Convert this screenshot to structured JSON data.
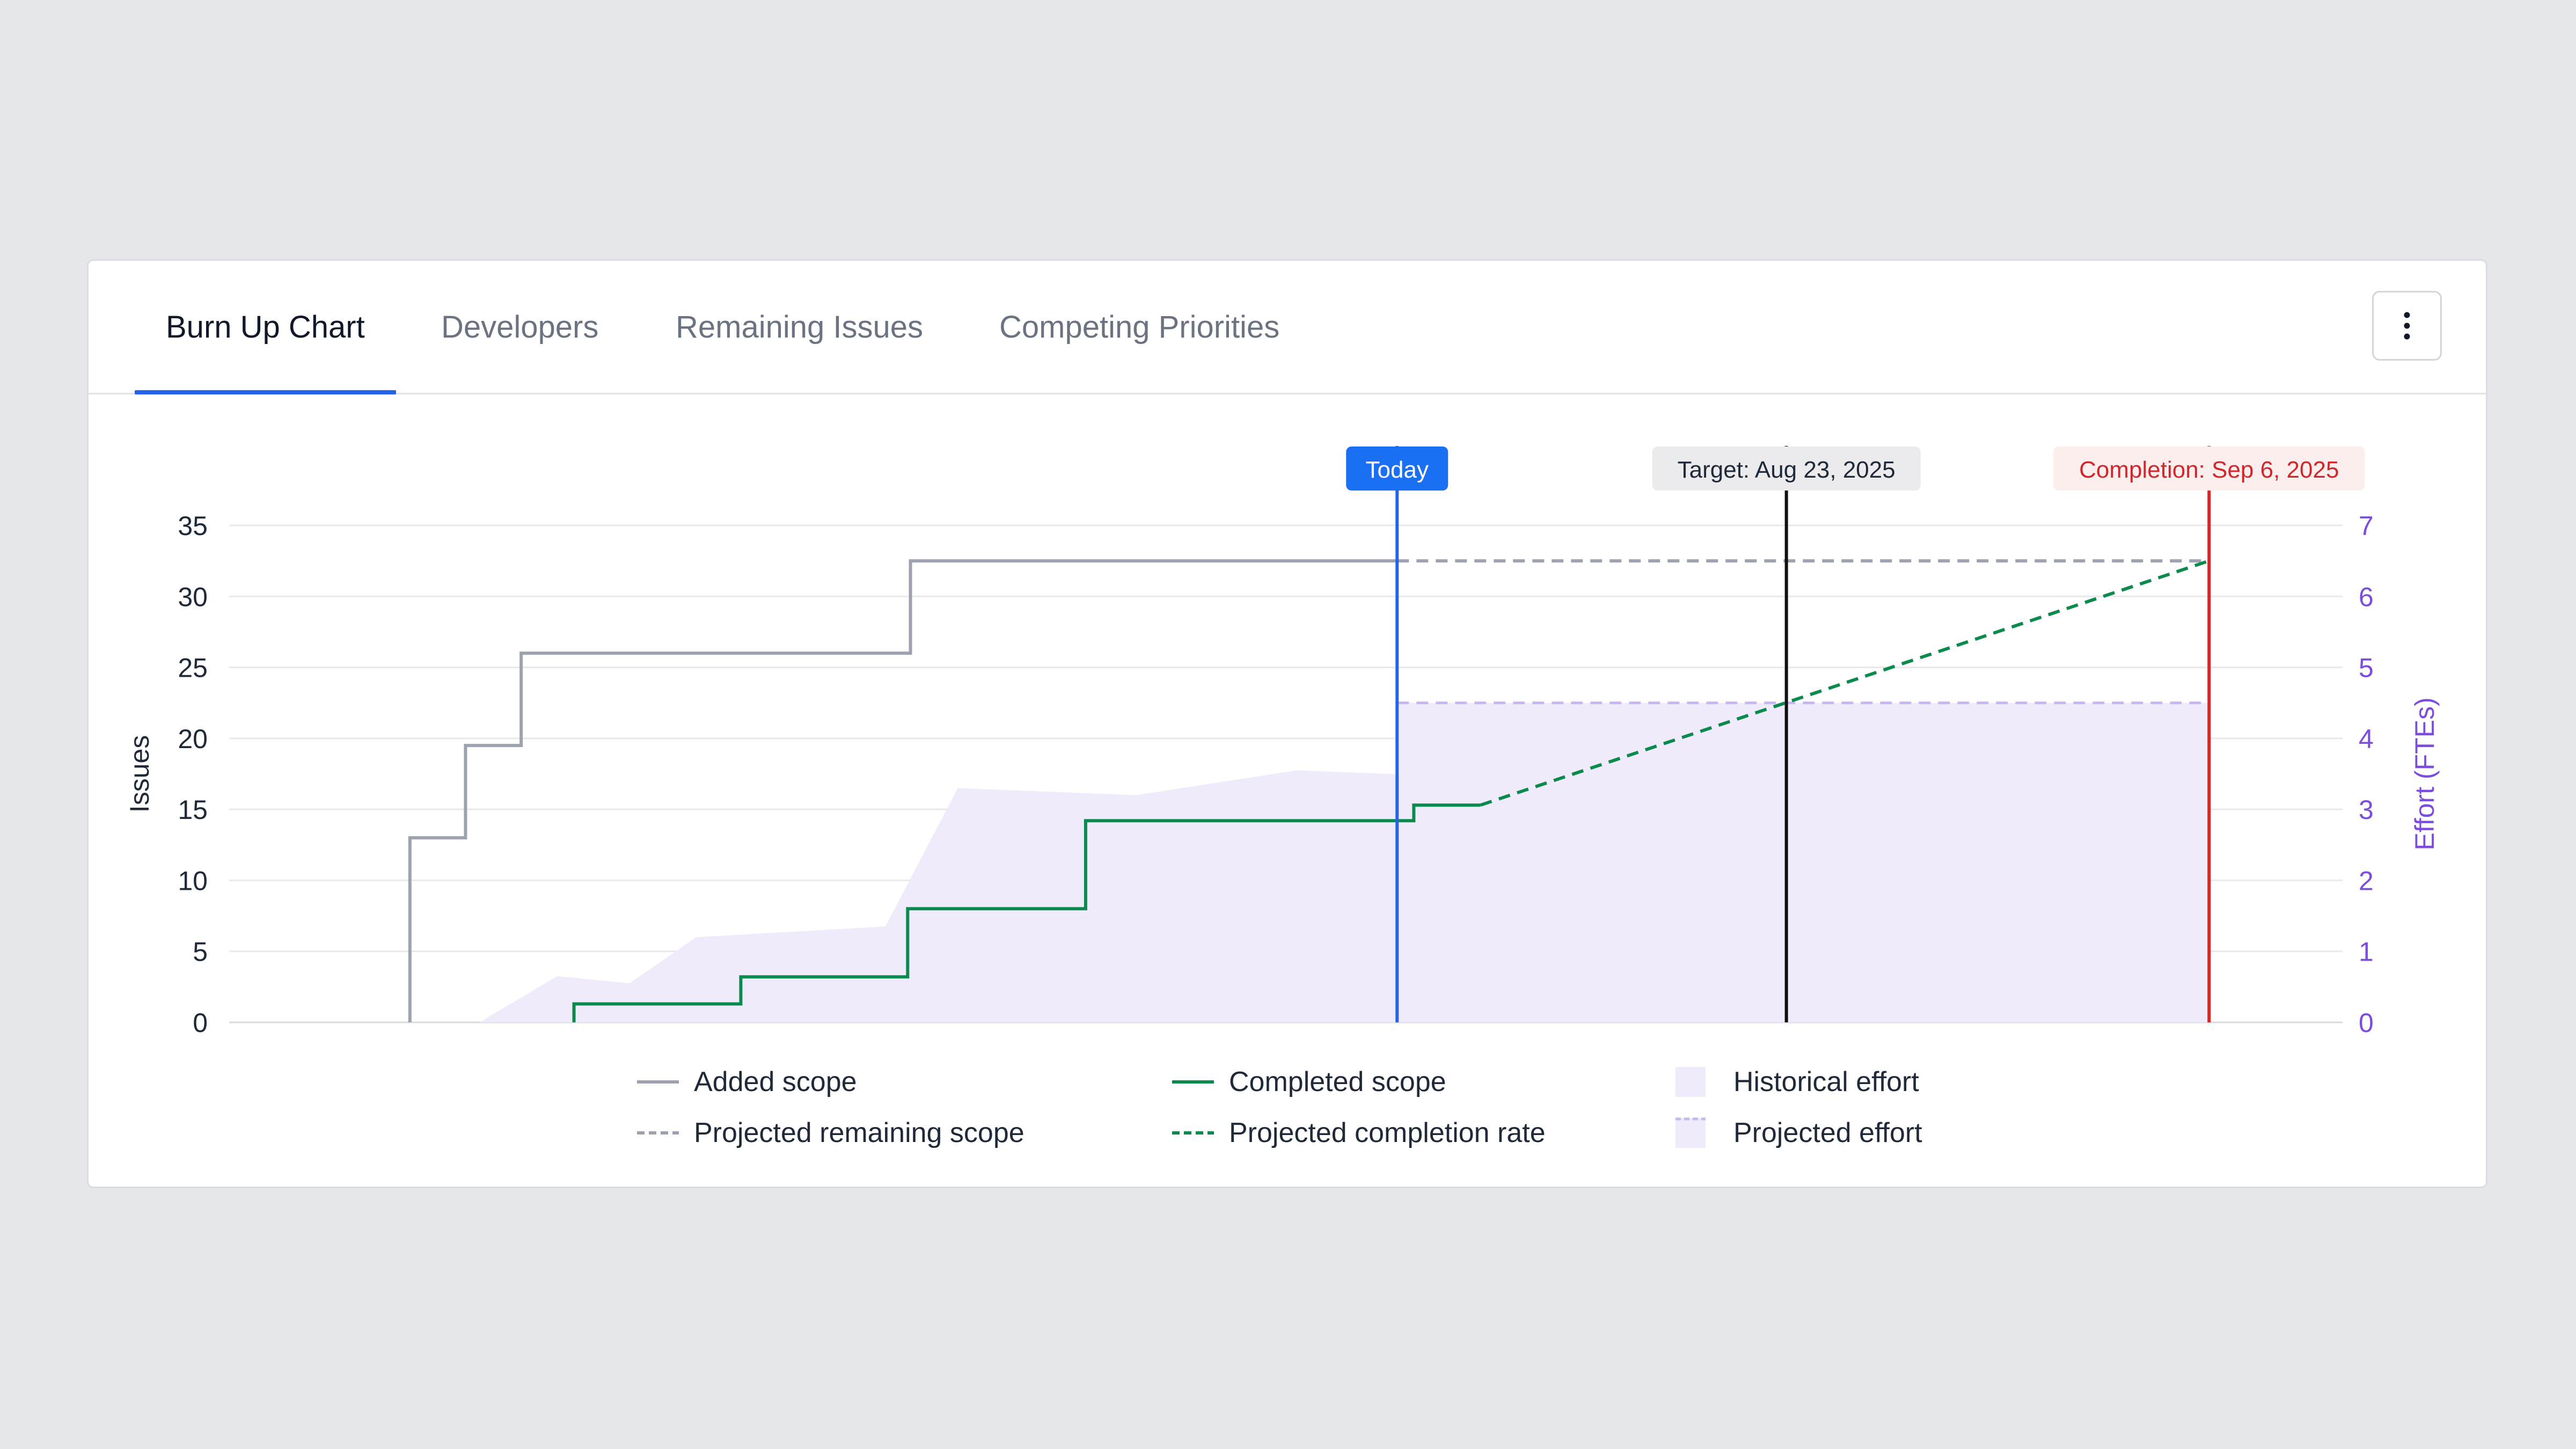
{
  "tabs": [
    {
      "label": "Burn Up Chart",
      "active": true
    },
    {
      "label": "Developers",
      "active": false
    },
    {
      "label": "Remaining Issues",
      "active": false
    },
    {
      "label": "Competing Priorities",
      "active": false
    }
  ],
  "menu_icon": "kebab-vertical-icon",
  "colors": {
    "accent": "#2563eb",
    "added_scope": "#9ca3af",
    "completed_scope": "#0b8a4e",
    "effort_fill": "#efebfa",
    "effort_line": "#c9b8ef",
    "right_axis": "#7c4ddc",
    "target": "#111111",
    "completion": "#dc2626"
  },
  "markers": {
    "today": {
      "label": "Today",
      "x": 21
    },
    "target": {
      "label": "Target: Aug 23, 2025",
      "x": 28
    },
    "completion": {
      "label": "Completion: Sep 6, 2025",
      "x": 35.6
    }
  },
  "chart_data": {
    "type": "line",
    "ylabel": "Issues",
    "y2label": "Effort (FTEs)",
    "ylim": [
      0,
      35
    ],
    "yticks": [
      0,
      5,
      10,
      15,
      20,
      25,
      30,
      35
    ],
    "y2lim": [
      0,
      7
    ],
    "y2ticks": [
      0,
      1,
      2,
      3,
      4,
      5,
      6,
      7
    ],
    "grid": true,
    "legend_position": "bottom",
    "series": [
      {
        "name": "Added scope",
        "style": "step",
        "points": [
          [
            3.25,
            0
          ],
          [
            3.25,
            13
          ],
          [
            4.25,
            13
          ],
          [
            4.25,
            19.5
          ],
          [
            5.25,
            19.5
          ],
          [
            5.25,
            26
          ],
          [
            12.25,
            26
          ],
          [
            12.25,
            32.5
          ],
          [
            21,
            32.5
          ]
        ]
      },
      {
        "name": "Completed scope",
        "style": "step",
        "points": [
          [
            6.2,
            0
          ],
          [
            6.2,
            1.3
          ],
          [
            9.2,
            1.3
          ],
          [
            9.2,
            3.2
          ],
          [
            12.2,
            3.2
          ],
          [
            12.2,
            8
          ],
          [
            15.4,
            8
          ],
          [
            15.4,
            14.2
          ],
          [
            21.3,
            14.2
          ],
          [
            21.3,
            15.3
          ],
          [
            22.5,
            15.3
          ]
        ]
      },
      {
        "name": "Projected remaining scope",
        "style": "dashed",
        "points": [
          [
            21,
            32.5
          ],
          [
            35.6,
            32.5
          ]
        ]
      },
      {
        "name": "Projected completion rate",
        "style": "dashed",
        "points": [
          [
            22.5,
            15.3
          ],
          [
            35.6,
            32.5
          ]
        ]
      },
      {
        "name": "Historical effort",
        "style": "area",
        "axis": "right",
        "points": [
          [
            4.5,
            0
          ],
          [
            5.9,
            0.65
          ],
          [
            7.2,
            0.55
          ],
          [
            8.4,
            1.2
          ],
          [
            11.8,
            1.35
          ],
          [
            13.1,
            3.3
          ],
          [
            16.3,
            3.2
          ],
          [
            19.2,
            3.55
          ],
          [
            22.5,
            3.45
          ]
        ]
      },
      {
        "name": "Projected effort",
        "style": "area-dashed",
        "axis": "right",
        "points": [
          [
            21,
            4.5
          ],
          [
            35.6,
            4.5
          ]
        ]
      }
    ]
  },
  "legend": [
    {
      "label": "Added scope",
      "symbol": "solid-gray"
    },
    {
      "label": "Projected remaining scope",
      "symbol": "dashed-gray"
    },
    {
      "label": "Completed scope",
      "symbol": "solid-green"
    },
    {
      "label": "Projected completion rate",
      "symbol": "dashed-green"
    },
    {
      "label": "Historical effort",
      "symbol": "fill-purple"
    },
    {
      "label": "Projected effort",
      "symbol": "fill-purple-dashed"
    }
  ]
}
